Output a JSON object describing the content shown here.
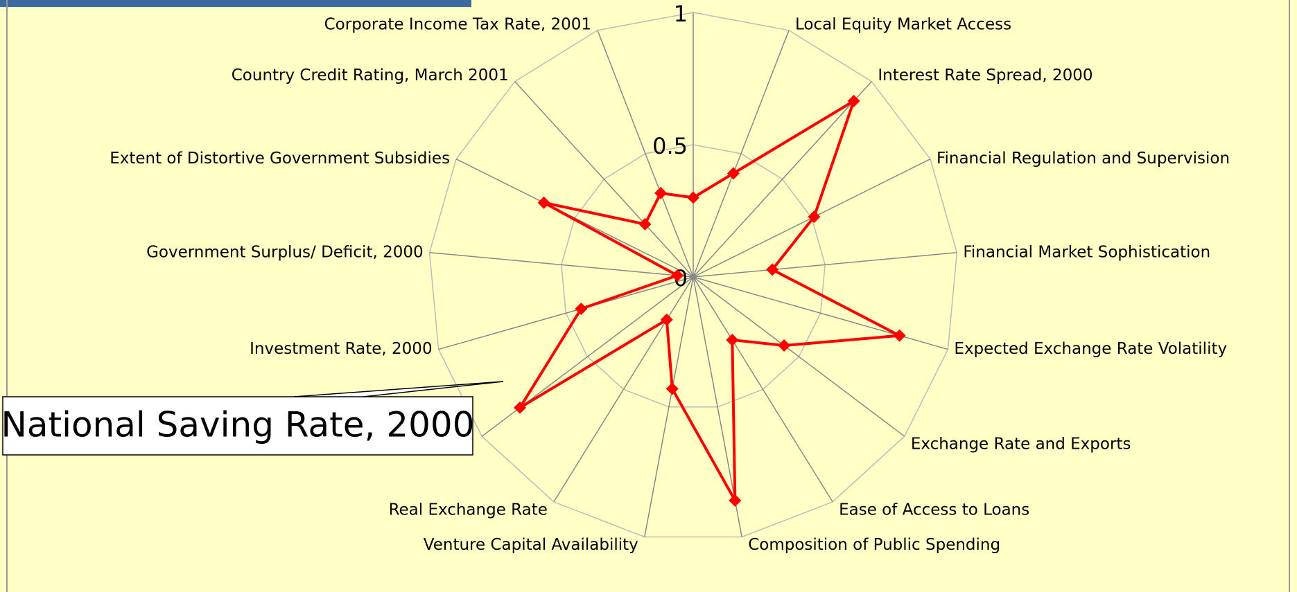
{
  "chart_data": {
    "type": "radar",
    "categories": [
      null,
      "Local Equity Market Access",
      "Interest Rate Spread, 2000",
      "Financial Regulation and Supervision",
      "Financial Market Sophistication",
      "Expected Exchange Rate Volatility",
      "Exchange Rate and Exports",
      "Ease of Access to Loans",
      "Composition of Public Spending",
      "Venture Capital Availability",
      "Real Exchange Rate",
      "National Saving Rate, 2000",
      "Investment Rate, 2000",
      "Government Surplus/ Deficit, 2000",
      "Extent of Distortive Government Subsidies",
      "Country Credit Rating, March 2001",
      "Corporate Income Tax Rate, 2001"
    ],
    "values": [
      0.3,
      0.42,
      0.9,
      0.51,
      0.3,
      0.81,
      0.43,
      0.28,
      0.86,
      0.43,
      0.19,
      0.82,
      0.44,
      0.06,
      0.63,
      0.27,
      0.34
    ],
    "color": "#ff0000",
    "ylim": [
      0,
      1
    ],
    "yticks": [
      0,
      0.5,
      1
    ],
    "grid": true
  }
}
